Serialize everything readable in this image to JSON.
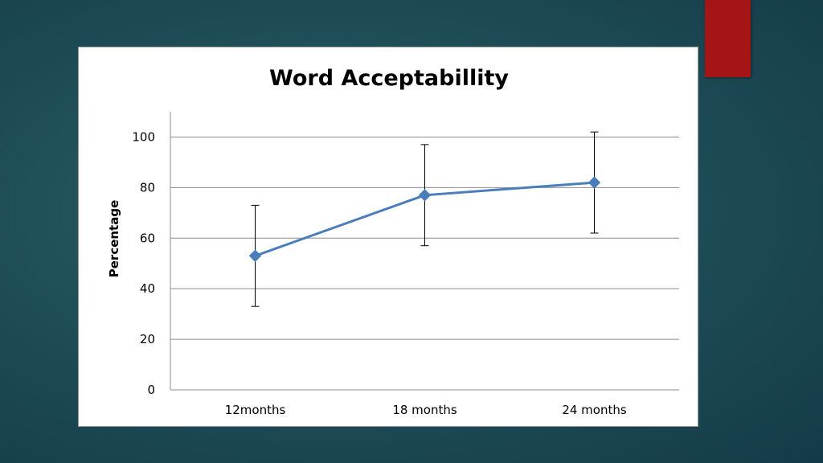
{
  "slide": {
    "accent_color": "#a51515",
    "background_color": "#1f4f58"
  },
  "chart_data": {
    "type": "line",
    "title": "Word Acceptabillity",
    "xlabel": "",
    "ylabel": "Percentage",
    "categories": [
      "12months",
      "18 months",
      "24 months"
    ],
    "series": [
      {
        "values": [
          53,
          77,
          82
        ],
        "error_low": [
          33,
          57,
          62
        ],
        "error_high": [
          73,
          97,
          102
        ],
        "color": "#4a7ebb",
        "marker": "diamond"
      }
    ],
    "ylim": [
      0,
      110
    ],
    "yticks": [
      0,
      20,
      40,
      60,
      80,
      100
    ],
    "grid": true,
    "legend": "none"
  }
}
